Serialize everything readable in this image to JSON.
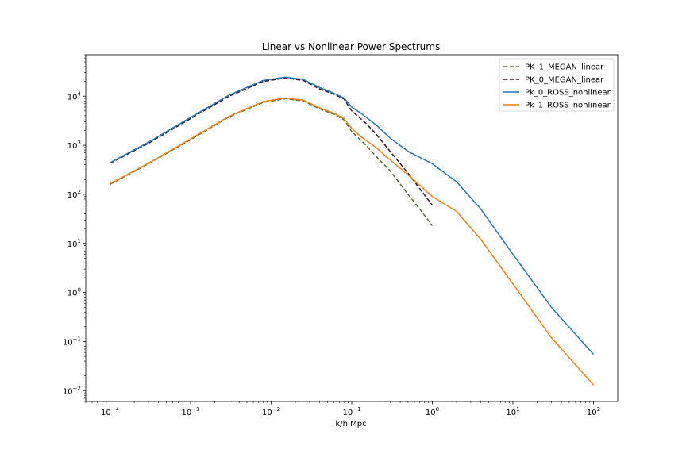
{
  "chart_data": {
    "type": "line",
    "title": "Linear vs Nonlinear Power Spectrums",
    "xlabel": "k/h Mpc",
    "ylabel": "",
    "xscale": "log",
    "yscale": "log",
    "xlim": [
      5e-05,
      200
    ],
    "ylim": [
      0.006,
      70000
    ],
    "grid": false,
    "legend_position": "top-right",
    "x_ticks": [
      {
        "value": 0.0001,
        "base": "10",
        "exp": "−4"
      },
      {
        "value": 0.001,
        "base": "10",
        "exp": "−3"
      },
      {
        "value": 0.01,
        "base": "10",
        "exp": "−2"
      },
      {
        "value": 0.1,
        "base": "10",
        "exp": "−1"
      },
      {
        "value": 1,
        "base": "10",
        "exp": "0"
      },
      {
        "value": 10,
        "base": "10",
        "exp": "1"
      },
      {
        "value": 100,
        "base": "10",
        "exp": "2"
      }
    ],
    "y_ticks": [
      {
        "value": 0.01,
        "base": "10",
        "exp": "−2"
      },
      {
        "value": 0.1,
        "base": "10",
        "exp": "−1"
      },
      {
        "value": 1,
        "base": "10",
        "exp": "0"
      },
      {
        "value": 10,
        "base": "10",
        "exp": "1"
      },
      {
        "value": 100,
        "base": "10",
        "exp": "2"
      },
      {
        "value": 1000,
        "base": "10",
        "exp": "3"
      },
      {
        "value": 10000,
        "base": "10",
        "exp": "4"
      }
    ],
    "series": [
      {
        "name": "PK_1_MEGAN_linear",
        "color": "#556b2f",
        "dash": true,
        "points": [
          [
            0.0001,
            160
          ],
          [
            0.0003,
            420
          ],
          [
            0.001,
            1300
          ],
          [
            0.003,
            3800
          ],
          [
            0.008,
            7500
          ],
          [
            0.015,
            8900
          ],
          [
            0.025,
            8000
          ],
          [
            0.04,
            5500
          ],
          [
            0.06,
            4300
          ],
          [
            0.08,
            3300
          ],
          [
            0.1,
            1900
          ],
          [
            0.15,
            1000
          ],
          [
            0.2,
            600
          ],
          [
            0.3,
            300
          ],
          [
            0.5,
            100
          ],
          [
            0.7,
            50
          ],
          [
            1.0,
            23
          ]
        ]
      },
      {
        "name": "PK_0_MEGAN_linear",
        "color": "#3b0f3b",
        "dash": true,
        "points": [
          [
            0.0001,
            430
          ],
          [
            0.0003,
            1100
          ],
          [
            0.001,
            3500
          ],
          [
            0.003,
            10000
          ],
          [
            0.008,
            20000
          ],
          [
            0.015,
            23500
          ],
          [
            0.025,
            21000
          ],
          [
            0.04,
            14000
          ],
          [
            0.06,
            11000
          ],
          [
            0.08,
            8800
          ],
          [
            0.1,
            5000
          ],
          [
            0.15,
            2800
          ],
          [
            0.2,
            1700
          ],
          [
            0.3,
            750
          ],
          [
            0.5,
            270
          ],
          [
            0.7,
            130
          ],
          [
            1.0,
            60
          ]
        ]
      },
      {
        "name": "Pk_0_ROSS_nonlinear",
        "color": "#1f77b4",
        "dash": false,
        "points": [
          [
            0.0001,
            440
          ],
          [
            0.0003,
            1150
          ],
          [
            0.001,
            3700
          ],
          [
            0.003,
            10500
          ],
          [
            0.008,
            21000
          ],
          [
            0.015,
            24500
          ],
          [
            0.025,
            22000
          ],
          [
            0.04,
            15000
          ],
          [
            0.06,
            11500
          ],
          [
            0.08,
            9200
          ],
          [
            0.1,
            6000
          ],
          [
            0.13,
            4500
          ],
          [
            0.2,
            2600
          ],
          [
            0.3,
            1400
          ],
          [
            0.5,
            750
          ],
          [
            1.0,
            420
          ],
          [
            2.0,
            180
          ],
          [
            4.0,
            50
          ],
          [
            10.0,
            6
          ],
          [
            30.0,
            0.5
          ],
          [
            100.0,
            0.055
          ]
        ]
      },
      {
        "name": "Pk_1_ROSS_nonlinear",
        "color": "#ff7f0e",
        "dash": false,
        "points": [
          [
            0.0001,
            165
          ],
          [
            0.0003,
            430
          ],
          [
            0.001,
            1350
          ],
          [
            0.003,
            3900
          ],
          [
            0.008,
            7800
          ],
          [
            0.015,
            9200
          ],
          [
            0.025,
            8300
          ],
          [
            0.04,
            5800
          ],
          [
            0.06,
            4500
          ],
          [
            0.08,
            3500
          ],
          [
            0.1,
            2200
          ],
          [
            0.13,
            1500
          ],
          [
            0.2,
            900
          ],
          [
            0.3,
            500
          ],
          [
            0.5,
            250
          ],
          [
            1.0,
            90
          ],
          [
            2.0,
            45
          ],
          [
            4.0,
            12
          ],
          [
            10.0,
            1.5
          ],
          [
            30.0,
            0.12
          ],
          [
            100.0,
            0.013
          ]
        ]
      }
    ]
  }
}
